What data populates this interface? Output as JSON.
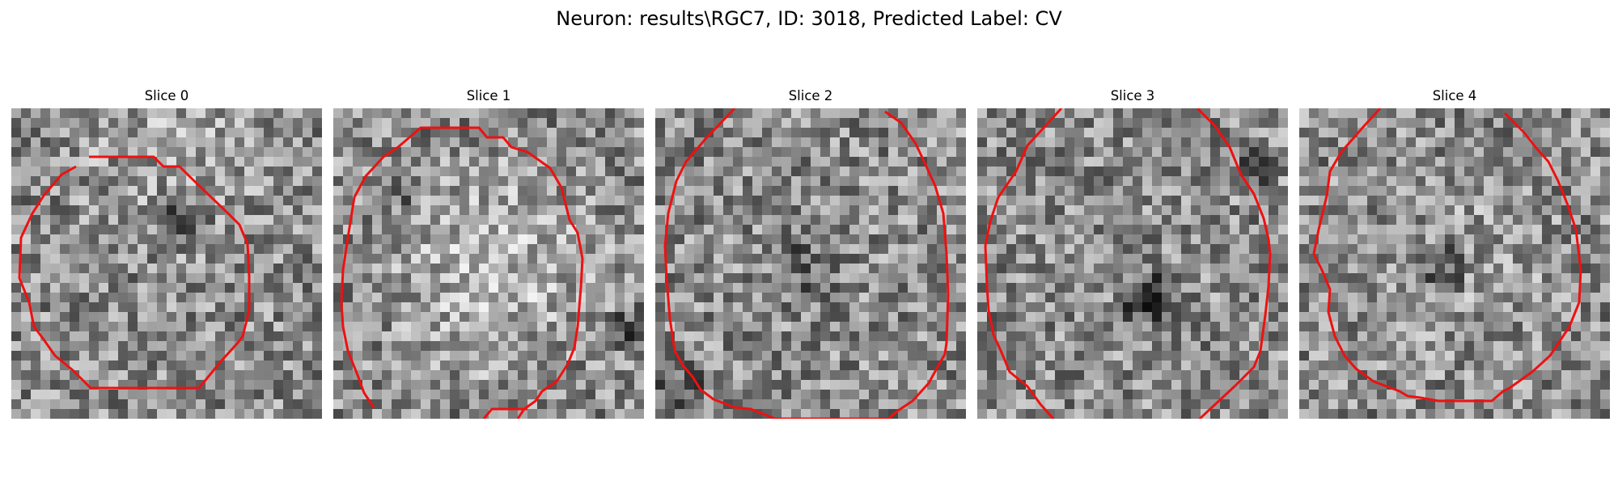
{
  "figure": {
    "title": "Neuron: results\\RGC7, ID: 3018, Predicted Label: CV"
  },
  "panels": [
    {
      "title": "Slice 0",
      "contour_color": "#ee1111"
    },
    {
      "title": "Slice 1",
      "contour_color": "#ee1111"
    },
    {
      "title": "Slice 2",
      "contour_color": "#ee1111"
    },
    {
      "title": "Slice 3",
      "contour_color": "#ee1111"
    },
    {
      "title": "Slice 4",
      "contour_color": "#ee1111"
    }
  ]
}
